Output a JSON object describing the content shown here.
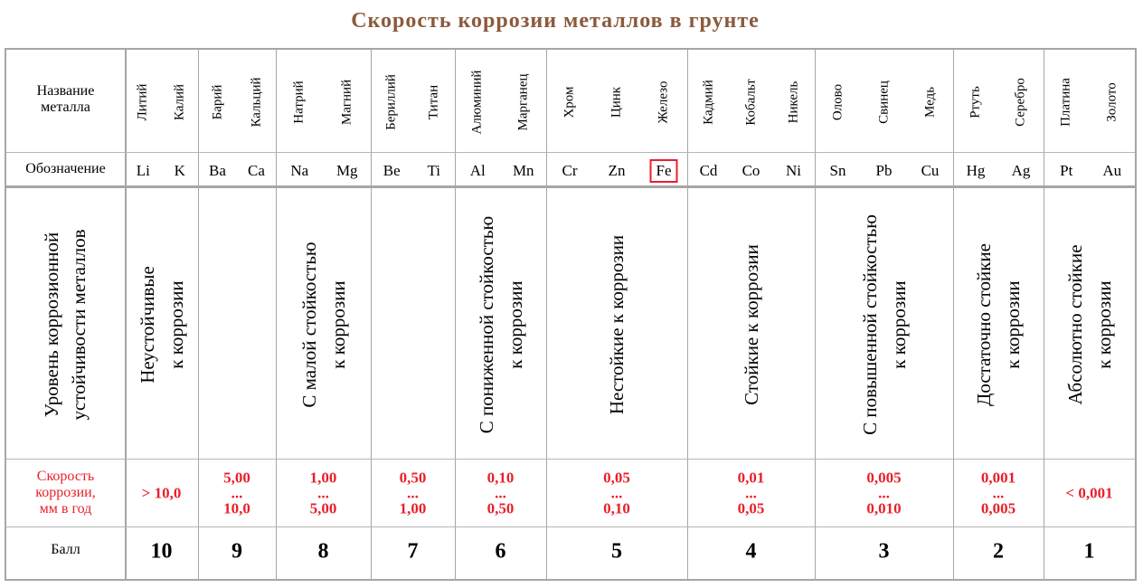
{
  "title": "Скорость  коррозии  металлов  в  грунте",
  "title_color": "#8b5a3c",
  "accent_red": "#e8202a",
  "row_labels": {
    "name": [
      "Название",
      "металла"
    ],
    "symbol": "Обозначение",
    "level": [
      "Уровень коррозионной",
      "устойчивости металлов"
    ],
    "rate": [
      "Скорость",
      "коррозии,",
      "мм в год"
    ],
    "score": "Балл"
  },
  "groups": [
    {
      "metals": [
        {
          "name": "Литий",
          "symbol": "Li"
        },
        {
          "name": "Калий",
          "symbol": "K"
        }
      ],
      "level": [
        "Неустойчивые",
        "к коррозии"
      ],
      "rate": [
        "> 10,0"
      ],
      "score": "10"
    },
    {
      "metals": [
        {
          "name": "Барий",
          "symbol": "Ba"
        },
        {
          "name": "Кальций",
          "symbol": "Ca"
        }
      ],
      "level": [],
      "rate": [
        "5,00",
        "...",
        "10,0"
      ],
      "score": "9"
    },
    {
      "metals": [
        {
          "name": "Натрий",
          "symbol": "Na"
        },
        {
          "name": "Магний",
          "symbol": "Mg"
        }
      ],
      "level": [
        "С малой стойкостью",
        "к коррозии"
      ],
      "rate": [
        "1,00",
        "...",
        "5,00"
      ],
      "score": "8"
    },
    {
      "metals": [
        {
          "name": "Бериллий",
          "symbol": "Be"
        },
        {
          "name": "Титан",
          "symbol": "Ti"
        }
      ],
      "level": [],
      "rate": [
        "0,50",
        "...",
        "1,00"
      ],
      "score": "7"
    },
    {
      "metals": [
        {
          "name": "Алюминий",
          "symbol": "Al"
        },
        {
          "name": "Марганец",
          "symbol": "Mn"
        }
      ],
      "level": [
        "С пониженной стойкостью",
        "к коррозии"
      ],
      "rate": [
        "0,10",
        "...",
        "0,50"
      ],
      "score": "6"
    },
    {
      "metals": [
        {
          "name": "Хром",
          "symbol": "Cr"
        },
        {
          "name": "Цинк",
          "symbol": "Zn"
        },
        {
          "name": "Железо",
          "symbol": "Fe",
          "highlight": true
        }
      ],
      "level": [
        "Нестойкие к коррозии"
      ],
      "rate": [
        "0,05",
        "...",
        "0,10"
      ],
      "score": "5"
    },
    {
      "metals": [
        {
          "name": "Кадмий",
          "symbol": "Cd"
        },
        {
          "name": "Кобальт",
          "symbol": "Co"
        },
        {
          "name": "Никель",
          "symbol": "Ni"
        }
      ],
      "level": [
        "Стойкие  к коррозии"
      ],
      "rate": [
        "0,01",
        "...",
        "0,05"
      ],
      "score": "4"
    },
    {
      "metals": [
        {
          "name": "Олово",
          "symbol": "Sn"
        },
        {
          "name": "Свинец",
          "symbol": "Pb"
        },
        {
          "name": "Медь",
          "symbol": "Cu"
        }
      ],
      "level": [
        "С повышенной стойкостью",
        "к коррозии"
      ],
      "rate": [
        "0,005",
        "...",
        "0,010"
      ],
      "score": "3"
    },
    {
      "metals": [
        {
          "name": "Ртуть",
          "symbol": "Hg"
        },
        {
          "name": "Серебро",
          "symbol": "Ag"
        }
      ],
      "level": [
        "Достаточно стойкие",
        "к коррозии"
      ],
      "rate": [
        "0,001",
        "...",
        "0,005"
      ],
      "score": "2"
    },
    {
      "metals": [
        {
          "name": "Платина",
          "symbol": "Pt"
        },
        {
          "name": "Золото",
          "symbol": "Au"
        }
      ],
      "level": [
        "Абсолютно стойкие",
        "к коррозии"
      ],
      "rate": [
        "< 0,001"
      ],
      "score": "1"
    }
  ]
}
